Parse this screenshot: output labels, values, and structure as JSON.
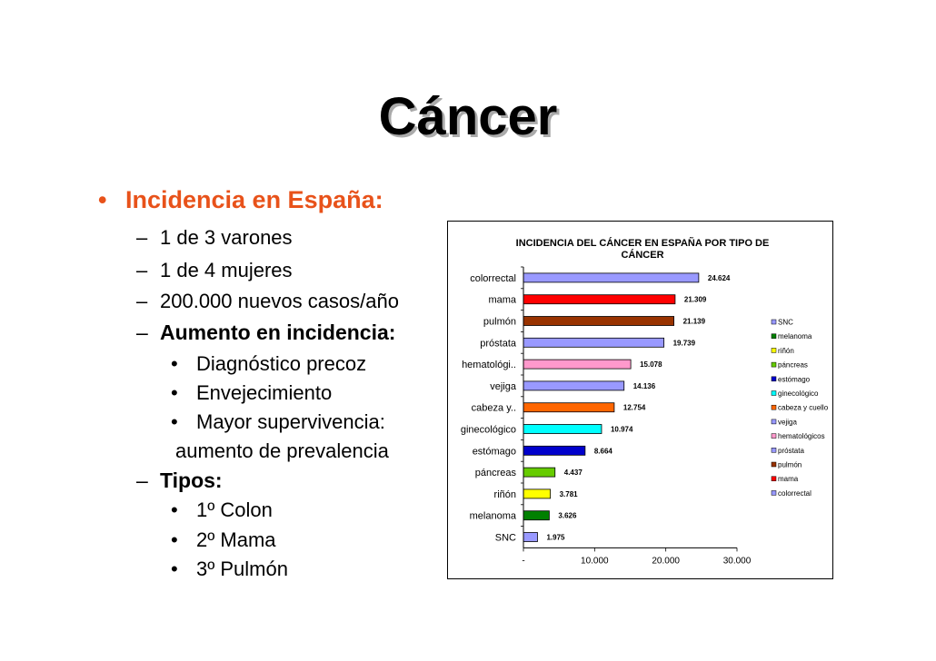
{
  "slide": {
    "title": "Cáncer",
    "heading": "Incidencia en España:",
    "heading_bullet": "•",
    "dash": "–",
    "dot": "•",
    "items": [
      "1 de 3 varones",
      "1 de 4 mujeres",
      "200.000 nuevos casos/año"
    ],
    "aumento": {
      "label": "Aumento en incidencia:",
      "subitems": [
        "Diagnóstico precoz",
        "Envejecimiento",
        "Mayor supervivencia:"
      ],
      "continuation": "aumento de prevalencia"
    },
    "tipos": {
      "label": "Tipos:",
      "subitems": [
        "1º Colon",
        "2º Mama",
        "3º Pulmón"
      ]
    }
  },
  "chart_data": {
    "type": "bar",
    "orientation": "horizontal",
    "title_line1": "INCIDENCIA DEL CÁNCER EN ESPAÑA  POR TIPO DE",
    "title_line2": "CÁNCER",
    "categories": [
      "colorrectal",
      "mama",
      "pulmón",
      "próstata",
      "hematológi..",
      "vejiga",
      "cabeza y..",
      "ginecológico",
      "estómago",
      "páncreas",
      "riñón",
      "melanoma",
      "SNC"
    ],
    "values": [
      24624,
      21309,
      21139,
      19739,
      15078,
      14136,
      12754,
      10974,
      8664,
      4437,
      3781,
      3626,
      1975
    ],
    "value_labels": [
      "24.624",
      "21.309",
      "21.139",
      "19.739",
      "15.078",
      "14.136",
      "12.754",
      "10.974",
      "8.664",
      "4.437",
      "3.781",
      "3.626",
      "1.975"
    ],
    "colors": [
      "#9999ff",
      "#ff0000",
      "#993300",
      "#9999ff",
      "#ff99cc",
      "#9999ff",
      "#ff6600",
      "#00ffff",
      "#0000cc",
      "#66cc00",
      "#ffff00",
      "#008000",
      "#9999ff"
    ],
    "xlim": [
      0,
      30000
    ],
    "x_ticks": [
      0,
      10000,
      20000,
      30000
    ],
    "x_tick_labels": [
      "-",
      "10.000",
      "20.000",
      "30.000"
    ],
    "legend_position": "right",
    "legend": [
      {
        "label": "SNC",
        "color": "#9999ff"
      },
      {
        "label": "melanoma",
        "color": "#008000"
      },
      {
        "label": "riñón",
        "color": "#ffff00"
      },
      {
        "label": "páncreas",
        "color": "#66cc00"
      },
      {
        "label": "estómago",
        "color": "#0000cc"
      },
      {
        "label": "ginecológico",
        "color": "#00ffff"
      },
      {
        "label": "cabeza y cuello",
        "color": "#ff6600"
      },
      {
        "label": "vejiga",
        "color": "#9999ff"
      },
      {
        "label": "hematológicos",
        "color": "#ff99cc"
      },
      {
        "label": "próstata",
        "color": "#9999ff"
      },
      {
        "label": "pulmón",
        "color": "#993300"
      },
      {
        "label": "mama",
        "color": "#ff0000"
      },
      {
        "label": "colorrectal",
        "color": "#9999ff"
      }
    ]
  }
}
